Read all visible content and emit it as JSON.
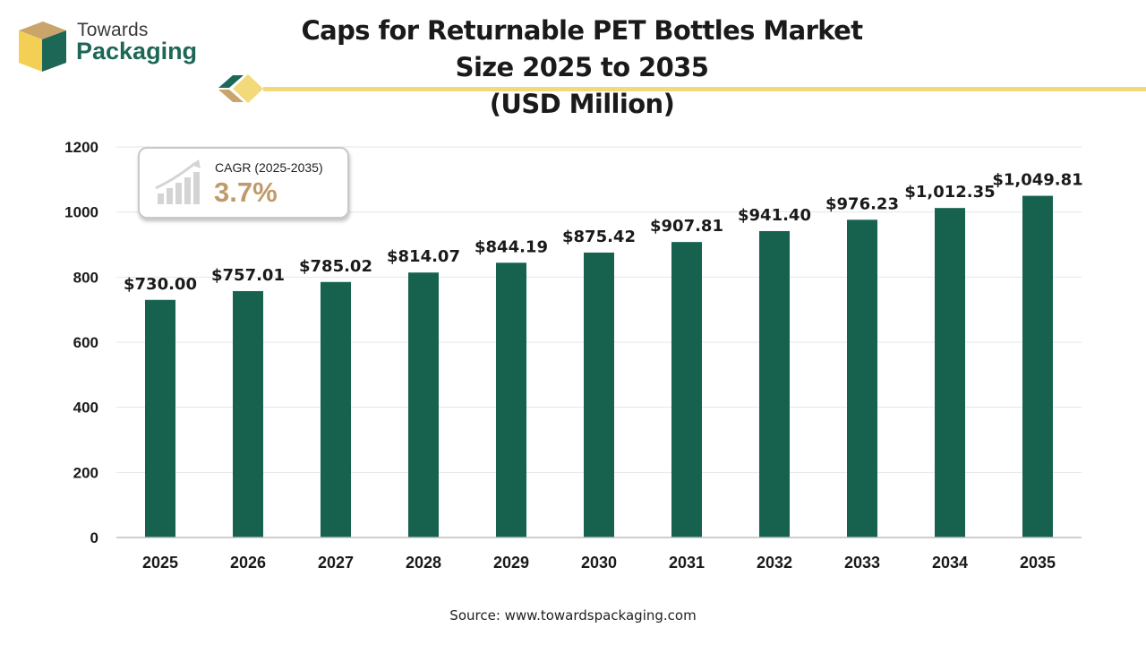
{
  "brand": {
    "line1": "Towards",
    "line2": "Packaging"
  },
  "title": {
    "line1": "Caps for Returnable PET Bottles Market Size 2025 to 2035",
    "line2": "(USD Million)"
  },
  "cagr": {
    "label": "CAGR (2025-2035)",
    "value": "3.7%"
  },
  "source": "Source: www.towardspackaging.com",
  "colors": {
    "bar": "#16624f",
    "accent": "#f2d97a",
    "brand": "#1d6757",
    "cagr_text": "#c09a6a"
  },
  "chart_data": {
    "type": "bar",
    "categories": [
      "2025",
      "2026",
      "2027",
      "2028",
      "2029",
      "2030",
      "2031",
      "2032",
      "2033",
      "2034",
      "2035"
    ],
    "values": [
      730.0,
      757.01,
      785.02,
      814.07,
      844.19,
      875.42,
      907.81,
      941.4,
      976.23,
      1012.35,
      1049.81
    ],
    "data_labels": [
      "$730.00",
      "$757.01",
      "$785.02",
      "$814.07",
      "$844.19",
      "$875.42",
      "$907.81",
      "$941.40",
      "$976.23",
      "$1,012.35",
      "$1,049.81"
    ],
    "yticks": [
      "0",
      "200",
      "400",
      "600",
      "800",
      "1000",
      "1200"
    ],
    "ylim": [
      0,
      1200
    ],
    "grid": true,
    "legend": "none"
  }
}
